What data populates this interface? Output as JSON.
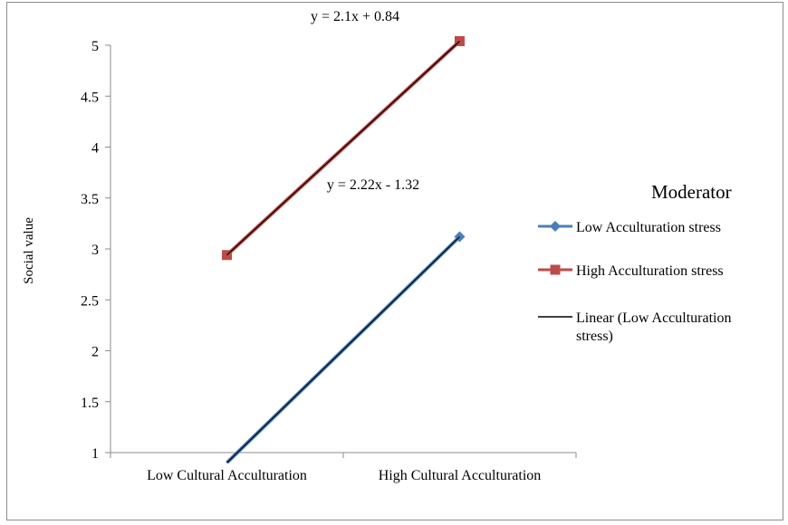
{
  "chart_data": {
    "type": "line",
    "categories": [
      "Low Cultural Acculturation",
      "High Cultural Acculturation"
    ],
    "ylabel": "Social value",
    "xlabel": "",
    "ylim": [
      1,
      5
    ],
    "yticks": [
      "1",
      "1.5",
      "2",
      "2.5",
      "3",
      "3.5",
      "4",
      "4.5",
      "5"
    ],
    "grid": false,
    "legend": {
      "title": "Moderator",
      "placement": "right",
      "entries": [
        {
          "label": "Low Acculturation stress",
          "color": "#4a7ebb",
          "marker": "diamond"
        },
        {
          "label": "High Acculturation stress",
          "color": "#be4b48",
          "marker": "square"
        },
        {
          "label": "Linear (Low Acculturation stress)",
          "color": "#000000",
          "marker": "none"
        }
      ]
    },
    "series": [
      {
        "name": "Low Acculturation stress",
        "color": "#4a7ebb",
        "marker": "diamond",
        "values": [
          0.9,
          3.12
        ]
      },
      {
        "name": "High Acculturation stress",
        "color": "#be4b48",
        "marker": "square",
        "values": [
          2.94,
          5.04
        ]
      }
    ],
    "trendlines": [
      {
        "series": "High Acculturation stress",
        "equation": "y = 2.1x  + 0.84",
        "slope": 2.1,
        "intercept": 0.84,
        "color": "#000000"
      },
      {
        "series": "Low Acculturation stress",
        "equation": "y = 2.22x  - 1.32",
        "slope": 2.22,
        "intercept": -1.32,
        "color": "#000000"
      }
    ]
  }
}
